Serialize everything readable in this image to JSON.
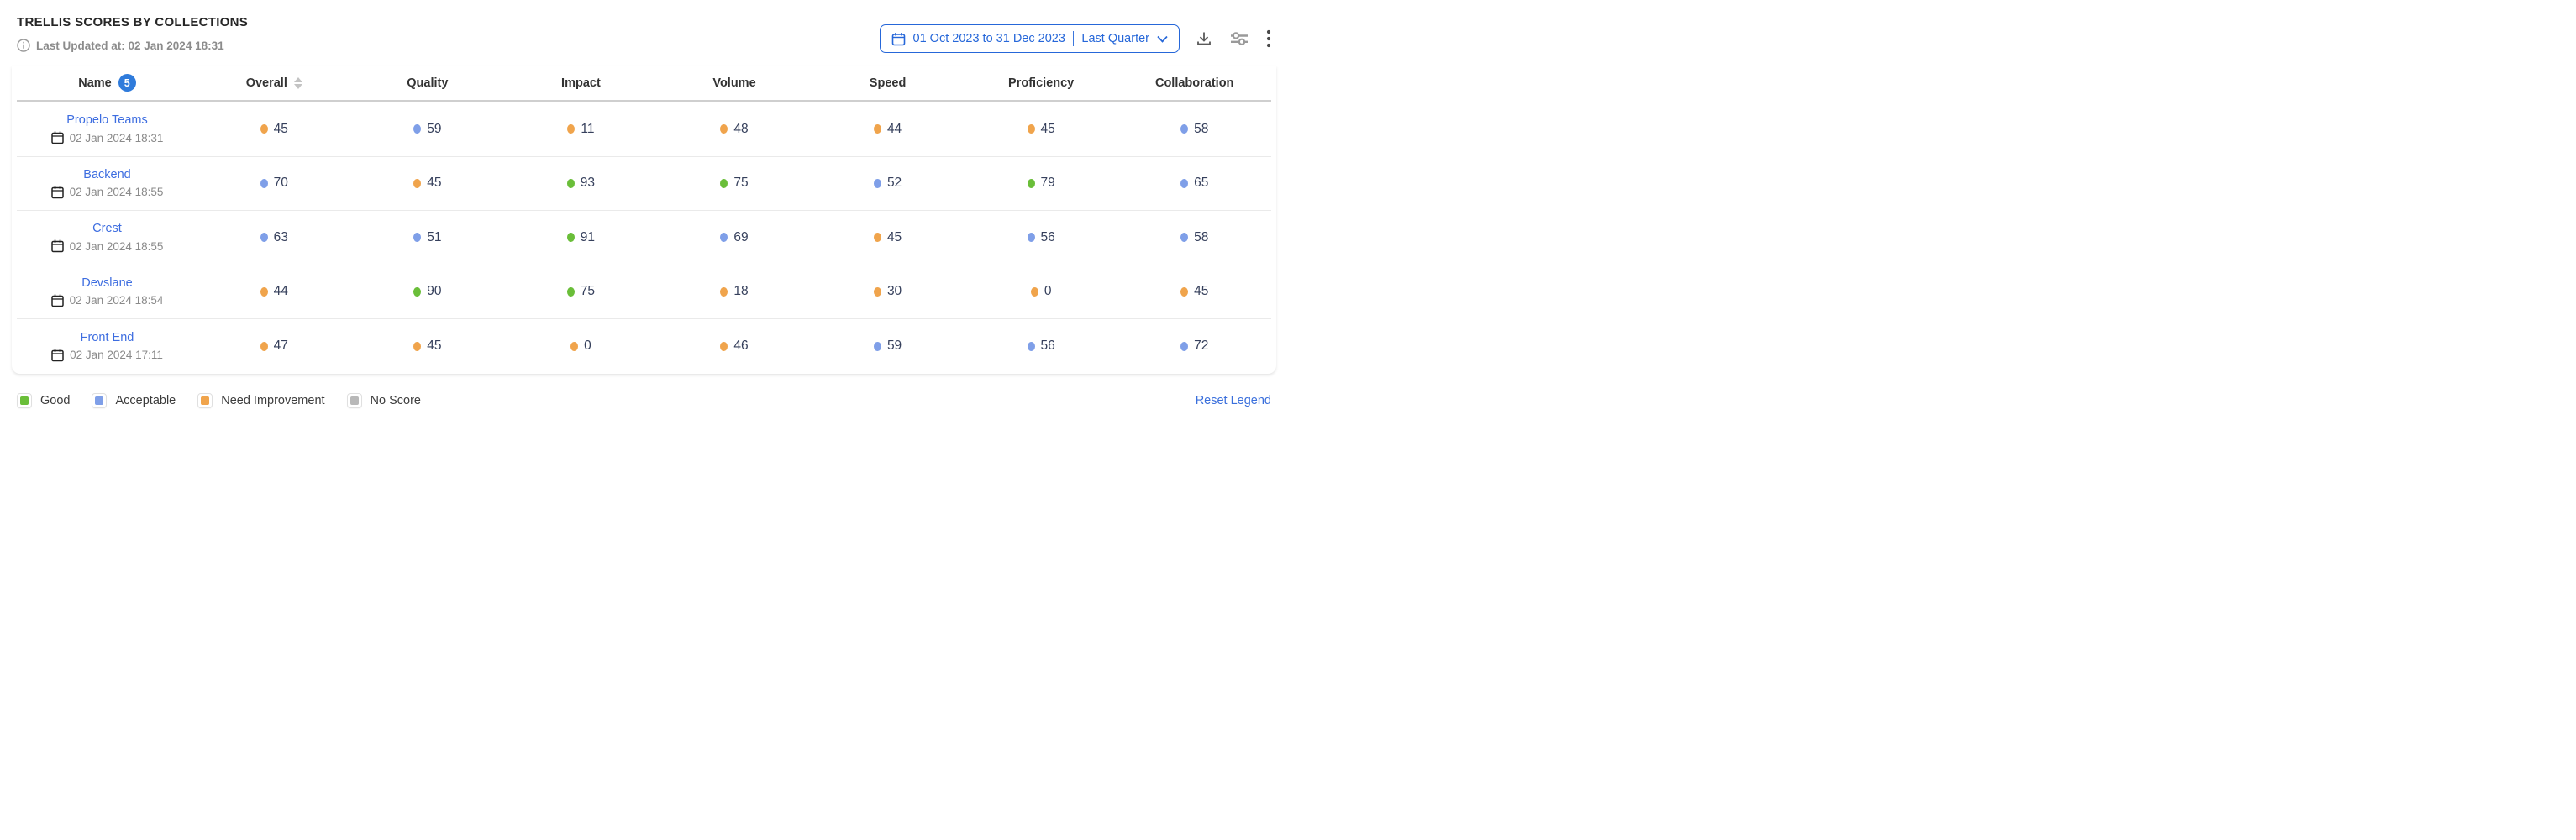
{
  "header": {
    "title": "TRELLIS SCORES BY COLLECTIONS",
    "last_updated": "Last Updated at: 02 Jan 2024 18:31",
    "date_range": "01 Oct 2023 to 31 Dec 2023",
    "date_preset": "Last Quarter"
  },
  "table": {
    "columns": [
      "Name",
      "Overall",
      "Quality",
      "Impact",
      "Volume",
      "Speed",
      "Proficiency",
      "Collaboration"
    ],
    "name_badge_count": "5",
    "sortable_column": "Overall",
    "rows": [
      {
        "name": "Propelo Teams",
        "updated": "02 Jan 2024 18:31",
        "scores": [
          {
            "value": "45",
            "status": "need_improvement"
          },
          {
            "value": "59",
            "status": "acceptable"
          },
          {
            "value": "11",
            "status": "need_improvement"
          },
          {
            "value": "48",
            "status": "need_improvement"
          },
          {
            "value": "44",
            "status": "need_improvement"
          },
          {
            "value": "45",
            "status": "need_improvement"
          },
          {
            "value": "58",
            "status": "acceptable"
          }
        ]
      },
      {
        "name": "Backend",
        "updated": "02 Jan 2024 18:55",
        "scores": [
          {
            "value": "70",
            "status": "acceptable"
          },
          {
            "value": "45",
            "status": "need_improvement"
          },
          {
            "value": "93",
            "status": "good"
          },
          {
            "value": "75",
            "status": "good"
          },
          {
            "value": "52",
            "status": "acceptable"
          },
          {
            "value": "79",
            "status": "good"
          },
          {
            "value": "65",
            "status": "acceptable"
          }
        ]
      },
      {
        "name": "Crest",
        "updated": "02 Jan 2024 18:55",
        "scores": [
          {
            "value": "63",
            "status": "acceptable"
          },
          {
            "value": "51",
            "status": "acceptable"
          },
          {
            "value": "91",
            "status": "good"
          },
          {
            "value": "69",
            "status": "acceptable"
          },
          {
            "value": "45",
            "status": "need_improvement"
          },
          {
            "value": "56",
            "status": "acceptable"
          },
          {
            "value": "58",
            "status": "acceptable"
          }
        ]
      },
      {
        "name": "Devslane",
        "updated": "02 Jan 2024 18:54",
        "scores": [
          {
            "value": "44",
            "status": "need_improvement"
          },
          {
            "value": "90",
            "status": "good"
          },
          {
            "value": "75",
            "status": "good"
          },
          {
            "value": "18",
            "status": "need_improvement"
          },
          {
            "value": "30",
            "status": "need_improvement"
          },
          {
            "value": "0",
            "status": "need_improvement"
          },
          {
            "value": "45",
            "status": "need_improvement"
          }
        ]
      },
      {
        "name": "Front End",
        "updated": "02 Jan 2024 17:11",
        "scores": [
          {
            "value": "47",
            "status": "need_improvement"
          },
          {
            "value": "45",
            "status": "need_improvement"
          },
          {
            "value": "0",
            "status": "need_improvement"
          },
          {
            "value": "46",
            "status": "need_improvement"
          },
          {
            "value": "59",
            "status": "acceptable"
          },
          {
            "value": "56",
            "status": "acceptable"
          },
          {
            "value": "72",
            "status": "acceptable"
          }
        ]
      }
    ]
  },
  "legend": {
    "items": [
      {
        "label": "Good",
        "status": "good"
      },
      {
        "label": "Acceptable",
        "status": "acceptable"
      },
      {
        "label": "Need Improvement",
        "status": "need_improvement"
      },
      {
        "label": "No Score",
        "status": "no_score"
      }
    ],
    "reset_label": "Reset Legend"
  },
  "colors": {
    "good": "#6abe39",
    "acceptable": "#7f9fe8",
    "need_improvement": "#f0a44c",
    "no_score": "#b8b8b8",
    "link_blue": "#3d6de0",
    "accent_blue": "#2667d9",
    "badge_blue": "#2f7bdb",
    "score_text": "#36405c"
  }
}
